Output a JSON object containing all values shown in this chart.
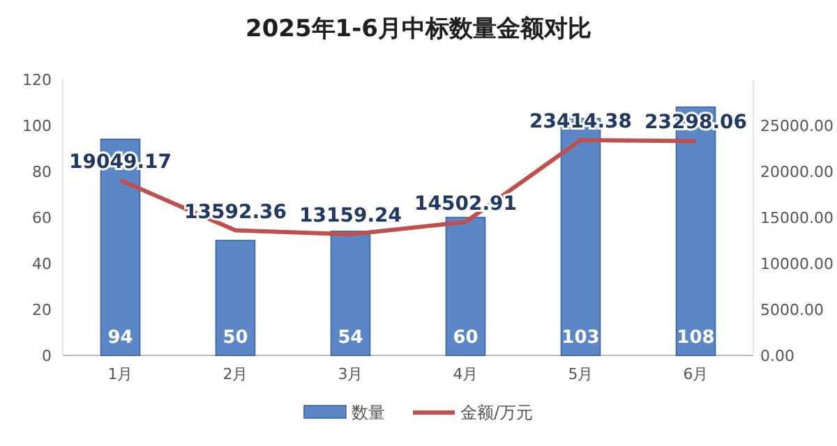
{
  "chart_data": {
    "type": "bar",
    "title": "2025年1-6月中标数量金额对比",
    "categories": [
      "1月",
      "2月",
      "3月",
      "4月",
      "5月",
      "6月"
    ],
    "series": [
      {
        "name": "数量",
        "color": "#5b87c6",
        "values": [
          94,
          50,
          54,
          60,
          103,
          108
        ]
      },
      {
        "name": "金额/万元",
        "type": "line",
        "axis": "y2",
        "color": "#c0504d",
        "values": [
          19049.17,
          13592.36,
          13159.24,
          14502.91,
          23414.38,
          23298.06
        ]
      }
    ],
    "ylim": [
      0,
      120
    ],
    "yticks": [
      0,
      20,
      40,
      60,
      80,
      100,
      120
    ],
    "y2lim": [
      0,
      30000
    ],
    "y2ticks": [
      {
        "value": 0,
        "label": "0.00"
      },
      {
        "value": 5000,
        "label": "5000.00"
      },
      {
        "value": 10000,
        "label": "10000.00"
      },
      {
        "value": 15000,
        "label": "15000.00"
      },
      {
        "value": 20000,
        "label": "20000.00"
      },
      {
        "value": 25000,
        "label": "25000.00"
      }
    ],
    "data_labels": true,
    "legend": "bottom",
    "grid": false
  }
}
